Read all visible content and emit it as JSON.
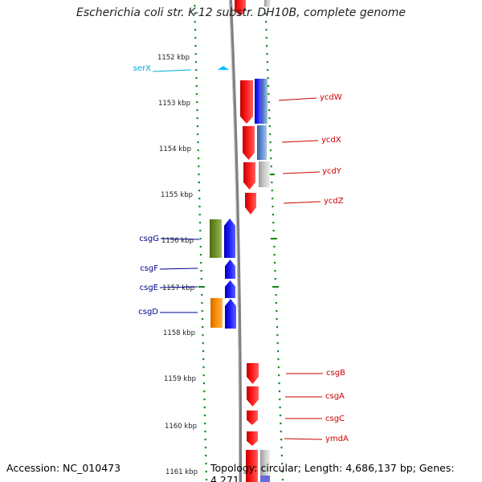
{
  "title": "Escherichia coli str. K-12 substr. DH10B, complete genome",
  "footer": {
    "accession": "Accession: NC_010473",
    "summary": "Topology: circular; Length: 4,686,137 bp; Genes: 4,271"
  },
  "colors": {
    "tick": "#1a8a1a",
    "backbone": "#808080",
    "red": "#ee0000",
    "blue": "#0000ee",
    "steelblue": "#4a7fc0",
    "gray": "#bdbdbd",
    "olive": "#6b8e23",
    "orange": "#ff8c00",
    "cyan": "#00bfff",
    "label_red": "#cc0000",
    "label_blue": "#00008b",
    "label_cyan": "#00aadd"
  },
  "kbp_labels": [
    "1152 kbp",
    "1153 kbp",
    "1154 kbp",
    "1155 kbp",
    "1156 kbp",
    "1157 kbp",
    "1158 kbp",
    "1159 kbp",
    "1160 kbp",
    "1161 kbp"
  ],
  "genes": [
    {
      "name": "serX",
      "color": "cyan",
      "label_color": "label_cyan",
      "side": "left"
    },
    {
      "name": "ycdW",
      "color": "red",
      "label_color": "label_red",
      "side": "right"
    },
    {
      "name": "ycdX",
      "color": "red",
      "label_color": "label_red",
      "side": "right"
    },
    {
      "name": "ycdY",
      "color": "red",
      "label_color": "label_red",
      "side": "right"
    },
    {
      "name": "ycdZ",
      "color": "red",
      "label_color": "label_red",
      "side": "right"
    },
    {
      "name": "csgG",
      "color": "blue",
      "label_color": "label_blue",
      "side": "left"
    },
    {
      "name": "csgF",
      "color": "blue",
      "label_color": "label_blue",
      "side": "left"
    },
    {
      "name": "csgE",
      "color": "blue",
      "label_color": "label_blue",
      "side": "left"
    },
    {
      "name": "csgD",
      "color": "blue",
      "label_color": "label_blue",
      "side": "left"
    },
    {
      "name": "csgB",
      "color": "red",
      "label_color": "label_red",
      "side": "right"
    },
    {
      "name": "csgA",
      "color": "red",
      "label_color": "label_red",
      "side": "right"
    },
    {
      "name": "csgC",
      "color": "red",
      "label_color": "label_red",
      "side": "right"
    },
    {
      "name": "ymdA",
      "color": "red",
      "label_color": "label_red",
      "side": "right"
    }
  ]
}
